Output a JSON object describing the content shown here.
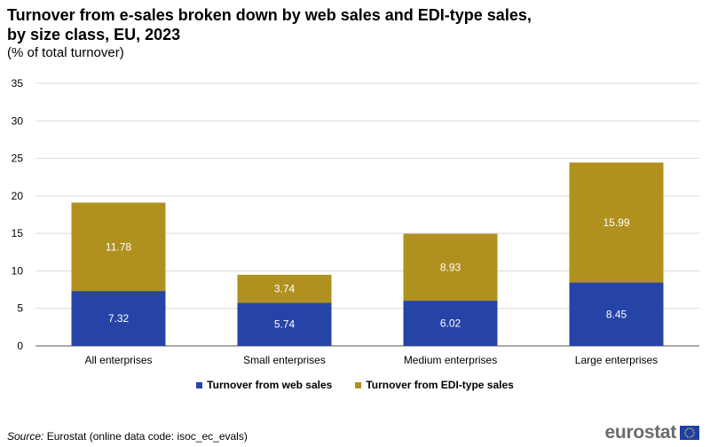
{
  "title_line1": "Turnover from e-sales broken down by web sales and EDI-type sales,",
  "title_line2": "by size class, EU, 2023",
  "subtitle": "(% of total turnover)",
  "source_label": "Source:",
  "source_text": "Eurostat (online data code: isoc_ec_evals)",
  "logo_text": "eurostat",
  "chart_data": {
    "type": "bar",
    "stacked": true,
    "categories": [
      "All enterprises",
      "Small enterprises",
      "Medium enterprises",
      "Large enterprises"
    ],
    "series": [
      {
        "name": "Turnover from web sales",
        "values": [
          7.32,
          5.74,
          6.02,
          8.45
        ],
        "color": "#2644a7"
      },
      {
        "name": "Turnover from EDI-type sales",
        "values": [
          11.78,
          3.74,
          8.93,
          15.99
        ],
        "color": "#b09120"
      }
    ],
    "ylim": [
      0,
      35
    ],
    "yticks": [
      0,
      5,
      10,
      15,
      20,
      25,
      30,
      35
    ],
    "ytick_labels": [
      "0",
      "5",
      "10",
      "15",
      "20",
      "25",
      "30",
      "35"
    ],
    "grid": true,
    "legend_position": "bottom"
  }
}
